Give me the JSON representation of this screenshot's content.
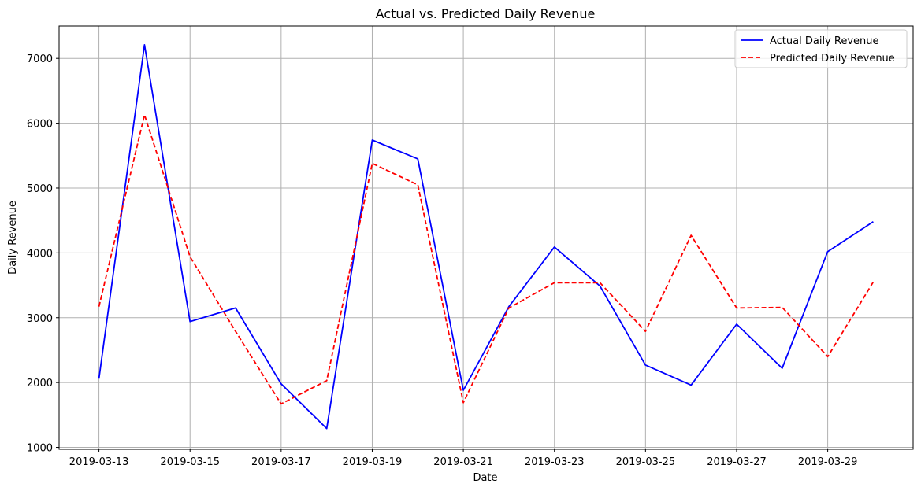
{
  "chart_data": {
    "type": "line",
    "title": "Actual vs. Predicted Daily Revenue",
    "xlabel": "Date",
    "ylabel": "Daily Revenue",
    "x": [
      "2019-03-13",
      "2019-03-14",
      "2019-03-15",
      "2019-03-16",
      "2019-03-17",
      "2019-03-18",
      "2019-03-19",
      "2019-03-20",
      "2019-03-21",
      "2019-03-22",
      "2019-03-23",
      "2019-03-24",
      "2019-03-25",
      "2019-03-26",
      "2019-03-27",
      "2019-03-28",
      "2019-03-29",
      "2019-03-30"
    ],
    "x_ticks": [
      "2019-03-13",
      "2019-03-15",
      "2019-03-17",
      "2019-03-19",
      "2019-03-21",
      "2019-03-23",
      "2019-03-25",
      "2019-03-27",
      "2019-03-29"
    ],
    "xlim": [
      "2019-03-12T03:00",
      "2019-03-30T21:00"
    ],
    "y_ticks": [
      1000,
      2000,
      3000,
      4000,
      5000,
      6000,
      7000
    ],
    "ylim": [
      970,
      7500
    ],
    "grid": true,
    "legend_position": "top-right",
    "series": [
      {
        "name": "Actual Daily Revenue",
        "color": "#0000ff",
        "style": "solid",
        "values": [
          2060,
          7210,
          2940,
          3150,
          1980,
          1290,
          5740,
          5450,
          1880,
          3170,
          4090,
          3490,
          2270,
          1960,
          2900,
          2220,
          4020,
          4480
        ]
      },
      {
        "name": "Predicted Daily Revenue",
        "color": "#ff0000",
        "style": "dashed",
        "values": [
          3170,
          6130,
          3940,
          2790,
          1670,
          2030,
          5380,
          5050,
          1690,
          3150,
          3540,
          3540,
          2790,
          4270,
          3150,
          3160,
          2400,
          3550
        ]
      }
    ]
  }
}
